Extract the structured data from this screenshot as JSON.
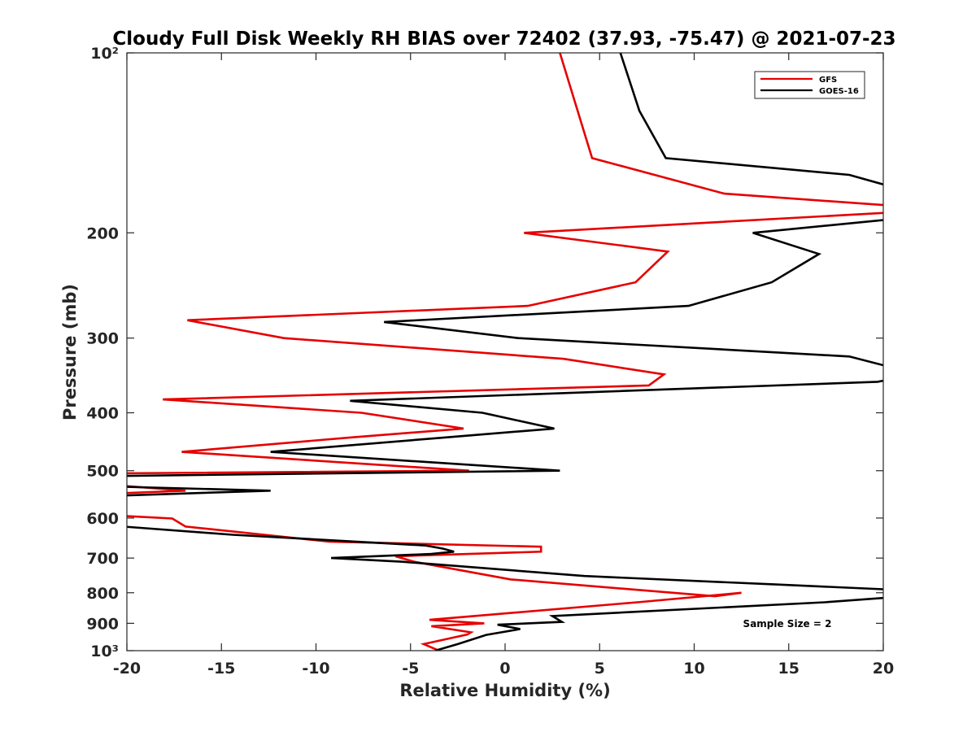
{
  "chart_data": {
    "type": "line",
    "title": "Cloudy Full Disk Weekly RH BIAS over 72402 (37.93, -75.47) @ 2021-07-23",
    "xlabel": "Relative Humidity (%)",
    "ylabel": "Pressure (mb)",
    "xlim": [
      -20,
      20
    ],
    "ylim": [
      100,
      1000
    ],
    "y_scale": "log",
    "y_reversed": true,
    "grid": false,
    "legend_position": "top-right",
    "x_ticks": [
      -20,
      -15,
      -10,
      -5,
      0,
      5,
      10,
      15,
      20
    ],
    "x_tick_labels": [
      "-20",
      "-15",
      "-10",
      "-5",
      "0",
      "5",
      "10",
      "15",
      "20"
    ],
    "y_ticks": [
      100,
      200,
      300,
      400,
      500,
      600,
      700,
      800,
      900,
      1000
    ],
    "y_tick_labels": [
      "10²",
      "200",
      "300",
      "400",
      "500",
      "600",
      "700",
      "800",
      "900",
      "10³"
    ],
    "annotation": "Sample Size = 2",
    "series": [
      {
        "name": "GFS",
        "color": "#e60000",
        "points": [
          [
            2.9,
            100
          ],
          [
            4.6,
            150
          ],
          [
            11.6,
            172
          ],
          [
            20.3,
            180
          ],
          [
            20.3,
            185
          ],
          [
            1.0,
            200
          ],
          [
            8.6,
            215
          ],
          [
            6.9,
            242
          ],
          [
            1.2,
            265
          ],
          [
            -16.8,
            280
          ],
          [
            -11.7,
            300
          ],
          [
            3.1,
            325
          ],
          [
            8.4,
            345
          ],
          [
            7.6,
            360
          ],
          [
            -18.1,
            380
          ],
          [
            -7.6,
            400
          ],
          [
            -2.2,
            425
          ],
          [
            -8.2,
            440
          ],
          [
            -17.1,
            465
          ],
          [
            -1.9,
            500
          ],
          [
            -20.2,
            505
          ],
          [
            -20.2,
            530
          ],
          [
            -16.9,
            540
          ],
          [
            -20.2,
            545
          ],
          [
            -20.2,
            595
          ],
          [
            -17.6,
            601
          ],
          [
            -16.9,
            620
          ],
          [
            -9.3,
            657
          ],
          [
            1.9,
            670
          ],
          [
            1.9,
            683
          ],
          [
            -5.8,
            695
          ],
          [
            -4.8,
            710
          ],
          [
            0.3,
            760
          ],
          [
            11.1,
            811
          ],
          [
            12.5,
            800
          ],
          [
            7.0,
            830
          ],
          [
            -4.0,
            888
          ],
          [
            -1.1,
            900
          ],
          [
            -3.9,
            910
          ],
          [
            -1.8,
            932
          ],
          [
            -2.0,
            940
          ],
          [
            -4.3,
            975
          ],
          [
            -3.5,
            1000
          ]
        ]
      },
      {
        "name": "GOES-16",
        "color": "#000000",
        "points": [
          [
            6.1,
            100
          ],
          [
            7.1,
            125
          ],
          [
            8.5,
            150
          ],
          [
            18.2,
            160
          ],
          [
            20.3,
            167
          ],
          [
            20.3,
            190
          ],
          [
            13.1,
            200
          ],
          [
            16.6,
            217
          ],
          [
            14.1,
            242
          ],
          [
            9.7,
            265
          ],
          [
            -6.4,
            282
          ],
          [
            0.7,
            300
          ],
          [
            18.2,
            322
          ],
          [
            20.3,
            335
          ],
          [
            20.3,
            352
          ],
          [
            19.7,
            355
          ],
          [
            -8.2,
            382
          ],
          [
            -1.2,
            400
          ],
          [
            2.6,
            425
          ],
          [
            -3.2,
            440
          ],
          [
            -12.4,
            465
          ],
          [
            2.9,
            500
          ],
          [
            -20.2,
            510
          ],
          [
            -20.2,
            532
          ],
          [
            -12.4,
            540
          ],
          [
            -20.2,
            550
          ],
          [
            -20.2,
            620
          ],
          [
            -14.4,
            640
          ],
          [
            -4.2,
            667
          ],
          [
            -3.3,
            675
          ],
          [
            -2.7,
            683
          ],
          [
            -3.9,
            689
          ],
          [
            -9.2,
            700
          ],
          [
            -5.4,
            710
          ],
          [
            4.2,
            750
          ],
          [
            14.3,
            775
          ],
          [
            20.3,
            790
          ],
          [
            20.3,
            815
          ],
          [
            16.9,
            830
          ],
          [
            2.5,
            875
          ],
          [
            3.0,
            895
          ],
          [
            -0.4,
            905
          ],
          [
            0.8,
            920
          ],
          [
            -1.0,
            941
          ],
          [
            -2.5,
            975
          ],
          [
            -3.7,
            1000
          ]
        ]
      }
    ]
  }
}
